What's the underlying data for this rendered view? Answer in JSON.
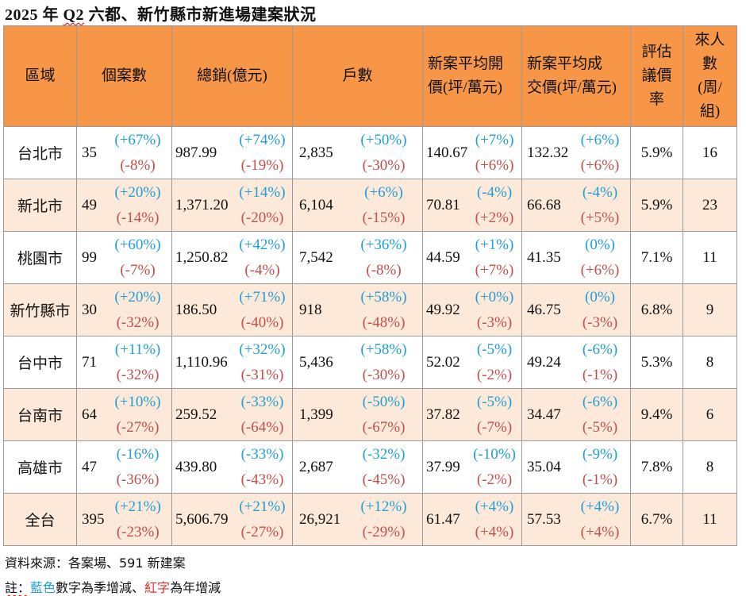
{
  "title": {
    "prefix": "2025 年 ",
    "q2": "Q2",
    "suffix": " 六都、新竹縣市新進場建案狀況"
  },
  "headers": {
    "region": "區域",
    "cases": "個案數",
    "sales": "總銷(億元)",
    "units": "戶數",
    "open_price_1": "新案平均開",
    "open_price_2": "價(坪/萬元)",
    "deal_price_1": "新案平均成",
    "deal_price_2": "交價(坪/萬元)",
    "bargain_1": "評估",
    "bargain_2": "議價",
    "bargain_3": "率",
    "visitors_1": "來人",
    "visitors_2": "數",
    "visitors_3": "(周/",
    "visitors_4": "組)"
  },
  "rows": [
    {
      "region": "台北市",
      "cases": "35",
      "cases_q": "(+67%)",
      "cases_y": "(-8%)",
      "sales": "987.99",
      "sales_q": "(+74%)",
      "sales_y": "(-19%)",
      "units": "2,835",
      "units_q": "(+50%)",
      "units_y": "(-30%)",
      "open": "140.67",
      "open_q": "(+7%)",
      "open_y": "(+6%)",
      "deal": "132.32",
      "deal_q": "(+6%)",
      "deal_y": "(+6%)",
      "bargain": "5.9%",
      "visitors": "16"
    },
    {
      "region": "新北市",
      "cases": "49",
      "cases_q": "(+20%)",
      "cases_y": "(-14%)",
      "sales": "1,371.20",
      "sales_q": "(+14%)",
      "sales_y": "(-20%)",
      "units": "6,104",
      "units_q": "(+6%)",
      "units_y": "(-15%)",
      "open": "70.81",
      "open_q": "(-4%)",
      "open_y": "(+2%)",
      "deal": "66.68",
      "deal_q": "(-4%)",
      "deal_y": "(+5%)",
      "bargain": "5.9%",
      "visitors": "23"
    },
    {
      "region": "桃園市",
      "cases": "99",
      "cases_q": "(+60%)",
      "cases_y": "(-7%)",
      "sales": "1,250.82",
      "sales_q": "(+42%)",
      "sales_y": "(-4%)",
      "units": "7,542",
      "units_q": "(+36%)",
      "units_y": "(-8%)",
      "open": "44.59",
      "open_q": "(+1%)",
      "open_y": "(+7%)",
      "deal": "41.35",
      "deal_q": "(0%)",
      "deal_y": "(+6%)",
      "bargain": "7.1%",
      "visitors": "11"
    },
    {
      "region": "新竹縣市",
      "cases": "30",
      "cases_q": "(+20%)",
      "cases_y": "(-32%)",
      "sales": "186.50",
      "sales_q": "(+71%)",
      "sales_y": "(-40%)",
      "units": "918",
      "units_q": "(+58%)",
      "units_y": "(-48%)",
      "open": "49.92",
      "open_q": "(+0%)",
      "open_y": "(-3%)",
      "deal": "46.75",
      "deal_q": "(0%)",
      "deal_y": "(-3%)",
      "bargain": "6.8%",
      "visitors": "9"
    },
    {
      "region": "台中市",
      "cases": "71",
      "cases_q": "(+11%)",
      "cases_y": "(-32%)",
      "sales": "1,110.96",
      "sales_q": "(+32%)",
      "sales_y": "(-31%)",
      "units": "5,436",
      "units_q": "(+58%)",
      "units_y": "(-30%)",
      "open": "52.02",
      "open_q": "(-5%)",
      "open_y": "(-2%)",
      "deal": "49.24",
      "deal_q": "(-6%)",
      "deal_y": "(-1%)",
      "bargain": "5.3%",
      "visitors": "8"
    },
    {
      "region": "台南市",
      "cases": "64",
      "cases_q": "(+10%)",
      "cases_y": "(-27%)",
      "sales": "259.52",
      "sales_q": "(-33%)",
      "sales_y": "(-64%)",
      "units": "1,399",
      "units_q": "(-50%)",
      "units_y": "(-67%)",
      "open": "37.82",
      "open_q": "(-5%)",
      "open_y": "(-7%)",
      "deal": "34.47",
      "deal_q": "(-6%)",
      "deal_y": "(-5%)",
      "bargain": "9.4%",
      "visitors": "6"
    },
    {
      "region": "高雄市",
      "cases": "47",
      "cases_q": "(-16%)",
      "cases_y": "(-36%)",
      "sales": "439.80",
      "sales_q": "(-33%)",
      "sales_y": "(-43%)",
      "units": "2,687",
      "units_q": "(-32%)",
      "units_y": "(-45%)",
      "open": "37.99",
      "open_q": "(-10%)",
      "open_y": "(-2%)",
      "deal": "35.04",
      "deal_q": "(-9%)",
      "deal_y": "(-1%)",
      "bargain": "7.8%",
      "visitors": "8"
    },
    {
      "region": "全台",
      "cases": "395",
      "cases_q": "(+21%)",
      "cases_y": "(-23%)",
      "sales": "5,606.79",
      "sales_q": "(+21%)",
      "sales_y": "(-27%)",
      "units": "26,921",
      "units_q": "(+12%)",
      "units_y": "(-29%)",
      "open": "61.47",
      "open_q": "(+4%)",
      "open_y": "(+4%)",
      "deal": "57.53",
      "deal_q": "(+4%)",
      "deal_y": "(+4%)",
      "bargain": "6.7%",
      "visitors": "11"
    }
  ],
  "footer": {
    "source": "資料來源：各案場、591 新建案",
    "note_prefix": "註：",
    "note_blue": "藍色",
    "note_mid": "數字為季增減、",
    "note_red": "紅字",
    "note_end": "為年增減"
  },
  "colors": {
    "header_bg": "#f79646",
    "alt_row_bg": "#fde9d9",
    "qoq_blue": "#1f9fd6",
    "yoy_red": "#c0504d"
  }
}
